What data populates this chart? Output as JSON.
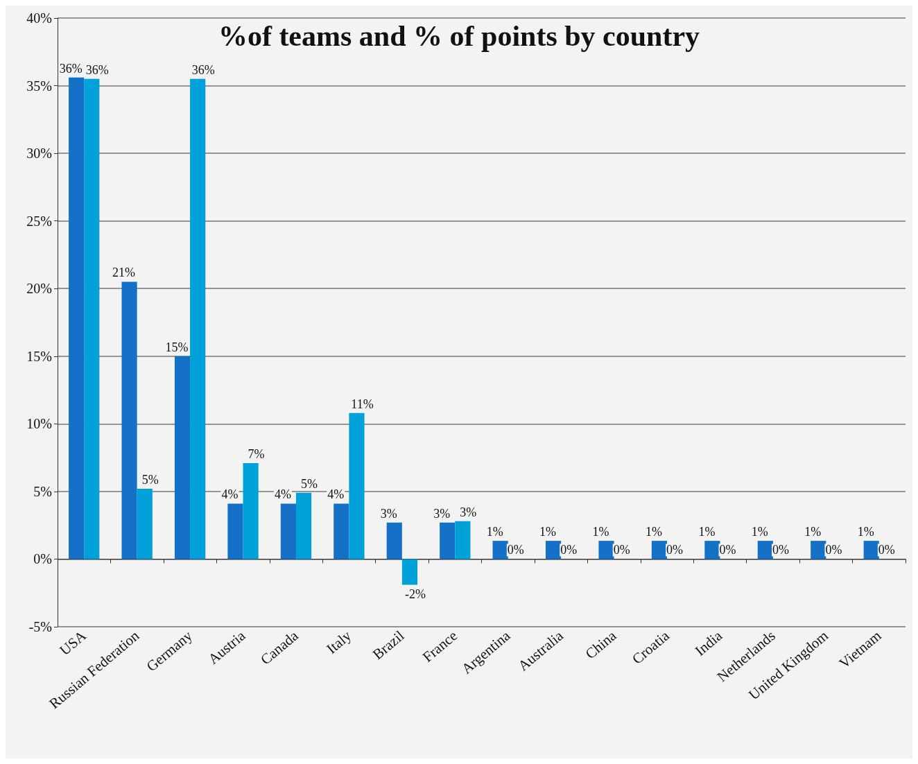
{
  "chart_data": {
    "type": "bar",
    "title": "%of teams and % of points by country",
    "categories": [
      "USA",
      "Russian Federation",
      "Germany",
      "Austria",
      "Canada",
      "Italy",
      "Brazil",
      "France",
      "Argentina",
      "Australia",
      "China",
      "Croatia",
      "India",
      "Netherlands",
      "United Kingdom",
      "Vietnam"
    ],
    "series": [
      {
        "color": "#1570c8",
        "values": [
          35.6,
          20.5,
          15.0,
          4.1,
          4.1,
          4.1,
          2.7,
          2.7,
          1.35,
          1.35,
          1.35,
          1.35,
          1.35,
          1.35,
          1.35,
          1.35
        ],
        "value_labels": [
          "36%",
          "21%",
          "15%",
          "4%",
          "4%",
          "4%",
          "3%",
          "3%",
          "1%",
          "1%",
          "1%",
          "1%",
          "1%",
          "1%",
          "1%",
          "1%"
        ]
      },
      {
        "color": "#00a0d8",
        "values": [
          35.5,
          5.2,
          35.5,
          7.1,
          4.9,
          10.8,
          -1.9,
          2.8,
          0,
          0,
          0,
          0,
          0,
          0,
          0,
          0
        ],
        "value_labels": [
          "36%",
          "5%",
          "36%",
          "7%",
          "5%",
          "11%",
          "-2%",
          "3%",
          "0%",
          "0%",
          "0%",
          "0%",
          "0%",
          "0%",
          "0%",
          "0%"
        ]
      }
    ],
    "ylim": [
      -5,
      40
    ],
    "yticks": [
      {
        "value": -5,
        "label": "-5%"
      },
      {
        "value": 0,
        "label": "0%"
      },
      {
        "value": 5,
        "label": "5%"
      },
      {
        "value": 10,
        "label": "10%"
      },
      {
        "value": 15,
        "label": "15%"
      },
      {
        "value": 20,
        "label": "20%"
      },
      {
        "value": 25,
        "label": "25%"
      },
      {
        "value": 30,
        "label": "30%"
      },
      {
        "value": 35,
        "label": "35%"
      },
      {
        "value": 40,
        "label": "40%"
      }
    ],
    "grid": "y"
  }
}
